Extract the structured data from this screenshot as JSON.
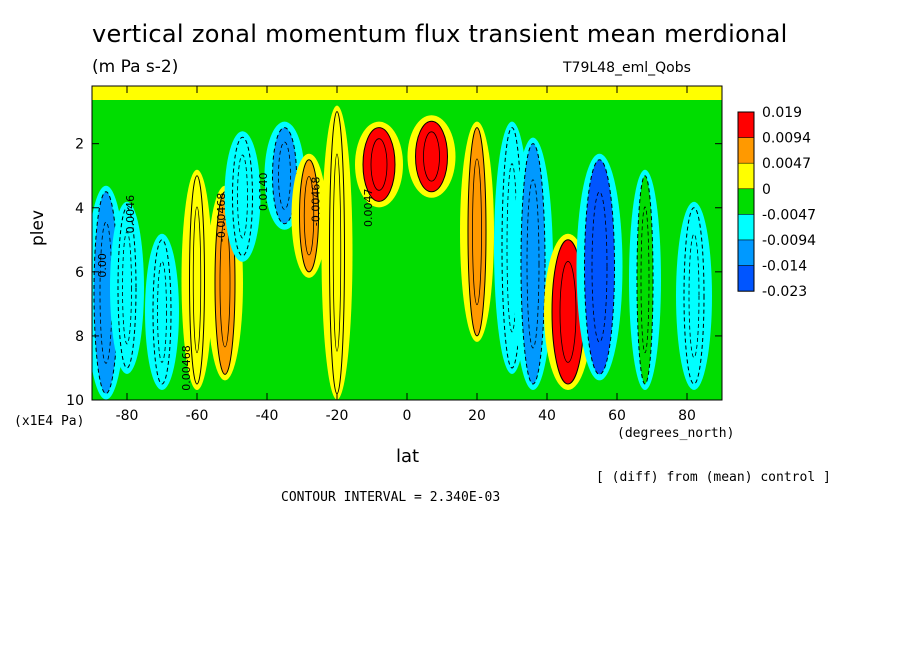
{
  "title": "vertical zonal momentum flux transient mean merdional",
  "units": "(m Pa s-2)",
  "run_name": "T79L48_eml_Qobs",
  "y_axis_label": "plev",
  "y_axis_unit": "(x1E4 Pa)",
  "x_axis_label": "lat",
  "x_axis_unit": "(degrees_north)",
  "diff_note": "[ (diff) from (mean) control ]",
  "contour_interval": "CONTOUR INTERVAL = 2.340E-03",
  "chart_data": {
    "type": "heatmap",
    "title": "vertical zonal momentum flux transient mean merdional",
    "xlabel": "lat",
    "ylabel": "plev",
    "xlim": [
      -90,
      90
    ],
    "ylim": [
      10,
      0.2
    ],
    "x_ticks": [
      "-80",
      "-60",
      "-40",
      "-20",
      "0",
      "20",
      "40",
      "60",
      "80"
    ],
    "y_ticks": [
      "2",
      "4",
      "6",
      "8",
      "10"
    ],
    "colorbar": {
      "levels": [
        "0.019",
        "0.0094",
        "0.0047",
        "0",
        "-0.0047",
        "-0.0094",
        "-0.014",
        "-0.023"
      ],
      "colors": [
        "#ff0000",
        "#ff9900",
        "#ffff00",
        "#00dd00",
        "#00ffff",
        "#0099ff",
        "#0055ff"
      ]
    },
    "contour_labels": [
      "0.00",
      "0.0046",
      "0.00468",
      "-0.00468",
      "0.0140",
      "-0.00468",
      "0.0047"
    ],
    "bands": [
      {
        "lat": -86,
        "p_top": 3.5,
        "p_bot": 9.8,
        "value": -0.012
      },
      {
        "lat": -80,
        "p_top": 4.0,
        "p_bot": 9.0,
        "value": -0.006
      },
      {
        "lat": -70,
        "p_top": 5.0,
        "p_bot": 9.5,
        "value": -0.006
      },
      {
        "lat": -60,
        "p_top": 3.0,
        "p_bot": 9.5,
        "value": 0.003
      },
      {
        "lat": -52,
        "p_top": 3.5,
        "p_bot": 9.2,
        "value": 0.008
      },
      {
        "lat": -47,
        "p_top": 1.8,
        "p_bot": 5.5,
        "value": -0.008
      },
      {
        "lat": -35,
        "p_top": 1.5,
        "p_bot": 4.5,
        "value": -0.012
      },
      {
        "lat": -28,
        "p_top": 2.5,
        "p_bot": 6.0,
        "value": 0.007
      },
      {
        "lat": -20,
        "p_top": 1.0,
        "p_bot": 9.8,
        "value": 0.003
      },
      {
        "lat": -8,
        "p_top": 1.5,
        "p_bot": 3.8,
        "value": 0.02
      },
      {
        "lat": 7,
        "p_top": 1.3,
        "p_bot": 3.5,
        "value": 0.02
      },
      {
        "lat": 20,
        "p_top": 1.5,
        "p_bot": 8.0,
        "value": 0.006
      },
      {
        "lat": 30,
        "p_top": 1.5,
        "p_bot": 9.0,
        "value": -0.008
      },
      {
        "lat": 36,
        "p_top": 2.0,
        "p_bot": 9.5,
        "value": -0.012
      },
      {
        "lat": 46,
        "p_top": 5.0,
        "p_bot": 9.5,
        "value": 0.02
      },
      {
        "lat": 55,
        "p_top": 2.5,
        "p_bot": 9.2,
        "value": -0.018
      },
      {
        "lat": 68,
        "p_top": 3.0,
        "p_bot": 9.5,
        "value": -0.004
      },
      {
        "lat": 82,
        "p_top": 4.0,
        "p_bot": 9.5,
        "value": -0.008
      }
    ]
  }
}
